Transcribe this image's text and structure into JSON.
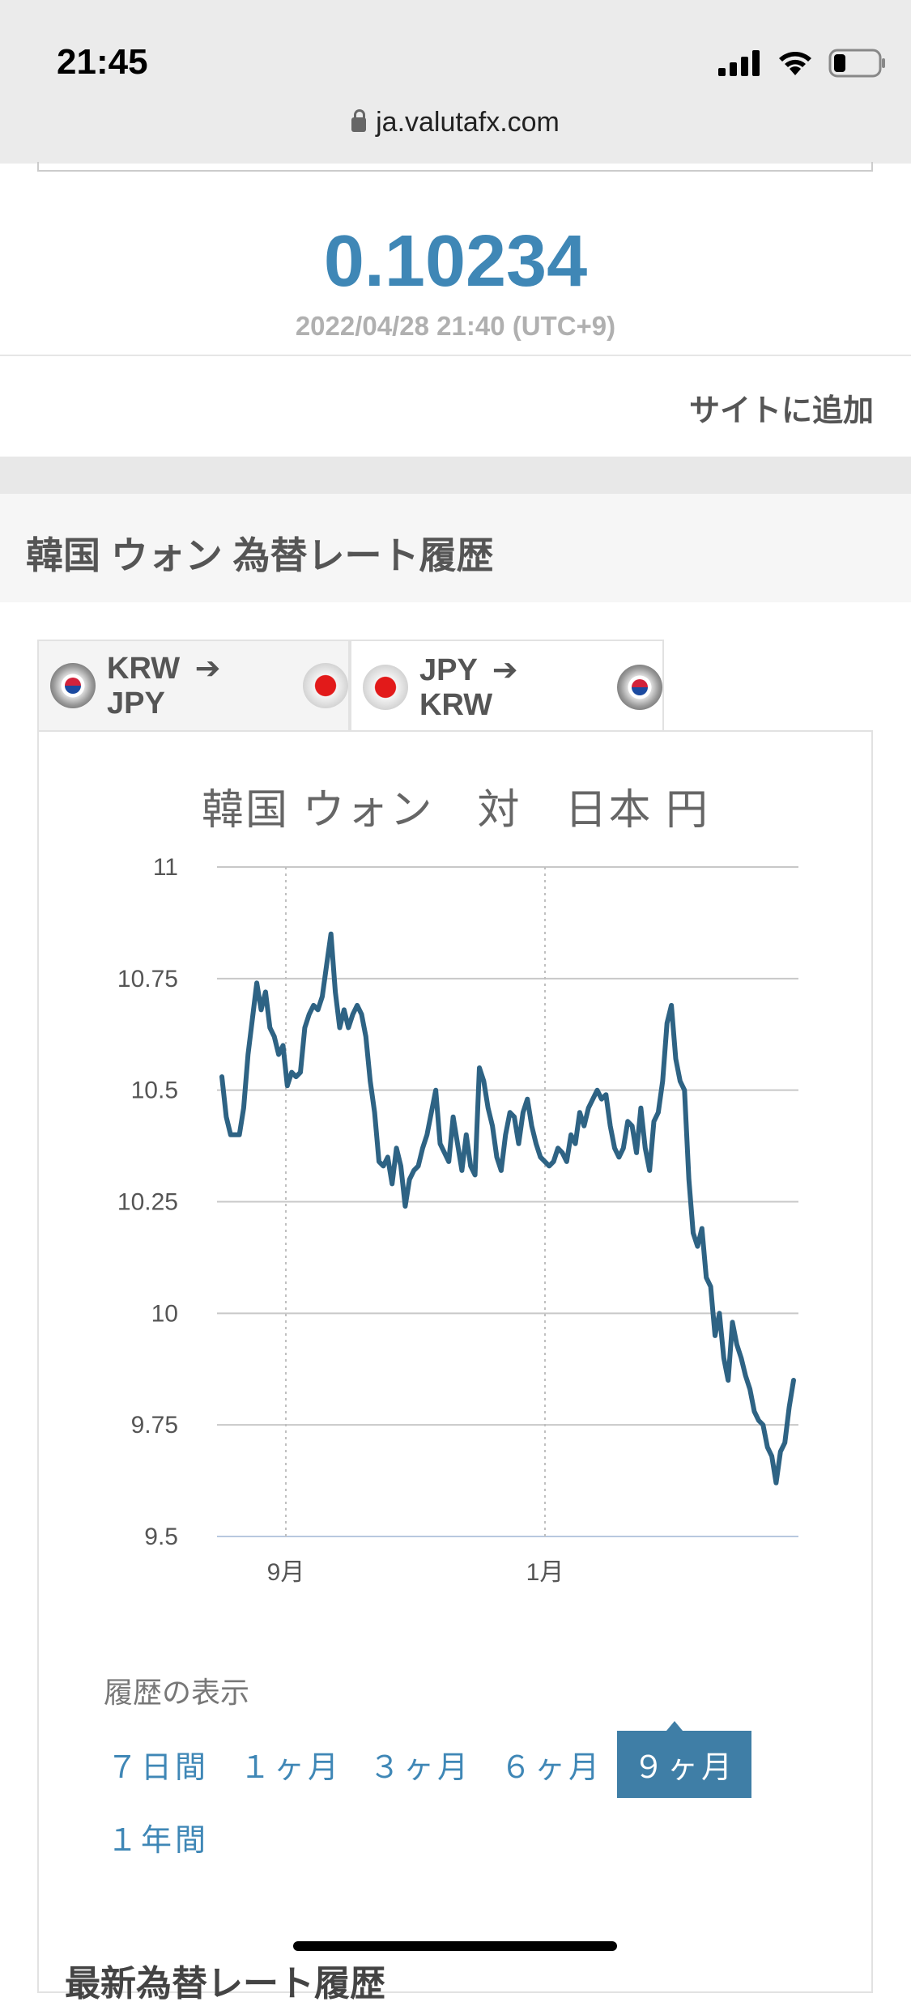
{
  "status_bar": {
    "time": "21:45"
  },
  "browser": {
    "url": "ja.valutafx.com"
  },
  "rate": {
    "value": "0.10234",
    "timestamp": "2022/04/28 21:40 (UTC+9)"
  },
  "add_to_site": "サイトに追加",
  "section_title": "韓国 ウォン 為替レート履歴",
  "tabs": [
    {
      "from": "KRW",
      "to": "JPY",
      "arrow": "➔"
    },
    {
      "from": "JPY",
      "to": "KRW",
      "arrow": "➔"
    }
  ],
  "chart_title": "韓国 ウォン　対　日本 円",
  "chart_data": {
    "type": "line",
    "title": "韓国 ウォン　対　日本 円",
    "xlabel": "",
    "ylabel": "",
    "ylim": [
      9.5,
      11
    ],
    "y_ticks": [
      "11",
      "10.75",
      "10.5",
      "10.25",
      "10",
      "9.75",
      "9.5"
    ],
    "x_ticks": [
      "9月",
      "1月"
    ],
    "grid": true,
    "series_color": "#2e6384",
    "series": [
      {
        "values": [
          10.53,
          10.44,
          10.4,
          10.4,
          10.4,
          10.46,
          10.58,
          10.66,
          10.74,
          10.68,
          10.72,
          10.64,
          10.62,
          10.58,
          10.6,
          10.51,
          10.54,
          10.53,
          10.54,
          10.64,
          10.67,
          10.69,
          10.68,
          10.71,
          10.78,
          10.85,
          10.72,
          10.64,
          10.68,
          10.64,
          10.67,
          10.69,
          10.67,
          10.62,
          10.52,
          10.45,
          10.34,
          10.33,
          10.35,
          10.29,
          10.37,
          10.33,
          10.24,
          10.3,
          10.32,
          10.33,
          10.37,
          10.4,
          10.45,
          10.5,
          10.38,
          10.36,
          10.34,
          10.44,
          10.38,
          10.32,
          10.4,
          10.33,
          10.31,
          10.55,
          10.52,
          10.46,
          10.42,
          10.35,
          10.32,
          10.4,
          10.45,
          10.44,
          10.38,
          10.45,
          10.48,
          10.42,
          10.38,
          10.35,
          10.34,
          10.33,
          10.34,
          10.37,
          10.36,
          10.34,
          10.4,
          10.38,
          10.45,
          10.42,
          10.46,
          10.48,
          10.5,
          10.48,
          10.49,
          10.42,
          10.37,
          10.35,
          10.37,
          10.43,
          10.42,
          10.36,
          10.46,
          10.37,
          10.32,
          10.43,
          10.45,
          10.52,
          10.65,
          10.69,
          10.57,
          10.52,
          10.5,
          10.3,
          10.18,
          10.15,
          10.19,
          10.08,
          10.06,
          9.95,
          10.0,
          9.9,
          9.85,
          9.98,
          9.93,
          9.9,
          9.86,
          9.83,
          9.78,
          9.76,
          9.75,
          9.7,
          9.68,
          9.62,
          9.69,
          9.71,
          9.79,
          9.85
        ]
      }
    ]
  },
  "history": {
    "label": "履歴の表示",
    "ranges": [
      "７日間",
      "１ヶ月",
      "３ヶ月",
      "６ヶ月",
      "９ヶ月",
      "１年間"
    ],
    "active": "９ヶ月"
  },
  "next_section_title": "最新為替レート履歴"
}
